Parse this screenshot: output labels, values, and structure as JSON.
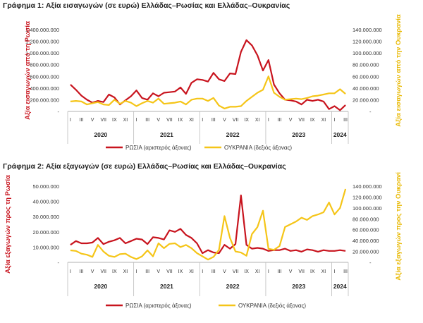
{
  "colors": {
    "russia": "#c8141e",
    "ukraine": "#f5c518",
    "axis": "#999999",
    "year_divider": "#bbbbbb"
  },
  "chart_data": [
    {
      "type": "line",
      "title": "Γράφημα 1: Αξία εισαγωγών (σε ευρώ) Ελλάδας–Ρωσίας και Ελλάδας–Ουκρανίας",
      "ylabel_left": "Αξία εισαγωγών από τη Ρωσία",
      "ylabel_right": "Αξία εισαγωγών από την Ουκρανία",
      "y_left_ticks": [
        "-",
        "200.000.000",
        "400.000.000",
        "600.000.000",
        "800.000.000",
        "1.000.000.000",
        "1.200.000.000",
        "1.400.000.000"
      ],
      "y_right_ticks": [
        "-",
        "20.000.000",
        "40.000.000",
        "60.000.000",
        "80.000.000",
        "100.000.000",
        "120.000.000",
        "140.000.000"
      ],
      "ylim_left": [
        0,
        1400000000
      ],
      "ylim_right": [
        0,
        140000000
      ],
      "month_labels": [
        "I",
        "III",
        "V",
        "VII",
        "IX",
        "XI",
        "I",
        "III",
        "V",
        "VII",
        "IX",
        "XI",
        "I",
        "III",
        "V",
        "VII",
        "IX",
        "XI",
        "I",
        "III",
        "V",
        "VII",
        "IX",
        "XI",
        "I",
        "III"
      ],
      "years": [
        "2020",
        "2021",
        "2022",
        "2023",
        "2024"
      ],
      "x": [
        "2020-01",
        "2020-02",
        "2020-03",
        "2020-04",
        "2020-05",
        "2020-06",
        "2020-07",
        "2020-08",
        "2020-09",
        "2020-10",
        "2020-11",
        "2020-12",
        "2021-01",
        "2021-02",
        "2021-03",
        "2021-04",
        "2021-05",
        "2021-06",
        "2021-07",
        "2021-08",
        "2021-09",
        "2021-10",
        "2021-11",
        "2021-12",
        "2022-01",
        "2022-02",
        "2022-03",
        "2022-04",
        "2022-05",
        "2022-06",
        "2022-07",
        "2022-08",
        "2022-09",
        "2022-10",
        "2022-11",
        "2022-12",
        "2023-01",
        "2023-02",
        "2023-03",
        "2023-04",
        "2023-05",
        "2023-06",
        "2023-07",
        "2023-08",
        "2023-09",
        "2023-10",
        "2023-11",
        "2023-12",
        "2024-01",
        "2024-02",
        "2024-03"
      ],
      "series": [
        {
          "name": "ΡΩΣΙΑ (αριστερός άξονας)",
          "axis": "left",
          "values": [
            460000000,
            370000000,
            270000000,
            200000000,
            150000000,
            180000000,
            160000000,
            290000000,
            240000000,
            120000000,
            190000000,
            260000000,
            360000000,
            230000000,
            200000000,
            310000000,
            260000000,
            320000000,
            330000000,
            340000000,
            410000000,
            300000000,
            490000000,
            550000000,
            540000000,
            510000000,
            660000000,
            550000000,
            520000000,
            650000000,
            640000000,
            1020000000,
            1220000000,
            1130000000,
            960000000,
            700000000,
            880000000,
            460000000,
            310000000,
            200000000,
            190000000,
            170000000,
            120000000,
            200000000,
            180000000,
            200000000,
            170000000,
            40000000,
            90000000,
            20000000,
            110000000
          ]
        },
        {
          "name": "ΟΥΚΡΑΝΙΑ (δεξιός άξονας)",
          "axis": "right",
          "values": [
            17000000,
            18000000,
            17000000,
            12000000,
            14000000,
            16000000,
            12000000,
            11000000,
            20000000,
            13000000,
            18000000,
            15000000,
            9000000,
            14000000,
            18000000,
            15000000,
            22000000,
            13000000,
            14000000,
            15000000,
            17000000,
            12000000,
            20000000,
            22000000,
            22000000,
            18000000,
            23000000,
            10000000,
            5000000,
            8000000,
            8000000,
            9000000,
            18000000,
            25000000,
            32000000,
            37000000,
            60000000,
            32000000,
            25000000,
            20000000,
            21000000,
            22000000,
            21000000,
            23000000,
            26000000,
            27000000,
            29000000,
            31000000,
            31000000,
            38000000,
            30000000
          ]
        }
      ]
    },
    {
      "type": "line",
      "title": "Γράφημα 2: Αξία εξαγωγών (σε ευρώ) Ελλάδας–Ρωσίας και Ελλάδας–Ουκρανίας",
      "ylabel_left": "Αξία εξαγωγών προς τη Ρωσία",
      "ylabel_right": "Αξία εξαγωγών προς την Ουκρανία",
      "y_left_ticks": [
        "-",
        "10.000.000",
        "20.000.000",
        "30.000.000",
        "40.000.000",
        "50.000.000"
      ],
      "y_right_ticks": [
        "-",
        "20.000.000",
        "40.000.000",
        "60.000.000",
        "80.000.000",
        "100.000.000",
        "120.000.000",
        "140.000.000"
      ],
      "ylim_left": [
        0,
        50000000
      ],
      "ylim_right": [
        0,
        140000000
      ],
      "month_labels": [
        "I",
        "III",
        "V",
        "VII",
        "IX",
        "XI",
        "I",
        "III",
        "V",
        "VII",
        "IX",
        "XI",
        "I",
        "III",
        "V",
        "VII",
        "IX",
        "XI",
        "I",
        "III",
        "V",
        "VII",
        "IX",
        "XI",
        "I",
        "III"
      ],
      "years": [
        "2020",
        "2021",
        "2022",
        "2023",
        "2024"
      ],
      "x": [
        "2020-01",
        "2020-02",
        "2020-03",
        "2020-04",
        "2020-05",
        "2020-06",
        "2020-07",
        "2020-08",
        "2020-09",
        "2020-10",
        "2020-11",
        "2020-12",
        "2021-01",
        "2021-02",
        "2021-03",
        "2021-04",
        "2021-05",
        "2021-06",
        "2021-07",
        "2021-08",
        "2021-09",
        "2021-10",
        "2021-11",
        "2021-12",
        "2022-01",
        "2022-02",
        "2022-03",
        "2022-04",
        "2022-05",
        "2022-06",
        "2022-07",
        "2022-08",
        "2022-09",
        "2022-10",
        "2022-11",
        "2022-12",
        "2023-01",
        "2023-02",
        "2023-03",
        "2023-04",
        "2023-05",
        "2023-06",
        "2023-07",
        "2023-08",
        "2023-09",
        "2023-10",
        "2023-11",
        "2023-12",
        "2024-01",
        "2024-02",
        "2024-03"
      ],
      "series": [
        {
          "name": "ΡΩΣΙΑ (αριστερός άξονας)",
          "axis": "left",
          "values": [
            11500000,
            14000000,
            12500000,
            12500000,
            13000000,
            16000000,
            12000000,
            13500000,
            14500000,
            16000000,
            12500000,
            14000000,
            15500000,
            15000000,
            12000000,
            16500000,
            16000000,
            15000000,
            21000000,
            20000000,
            22000000,
            18000000,
            16000000,
            12500000,
            6000000,
            8000000,
            6500000,
            6000000,
            11500000,
            9000000,
            12000000,
            44000000,
            11500000,
            9000000,
            9500000,
            9000000,
            7500000,
            8000000,
            8000000,
            9000000,
            7500000,
            8000000,
            7000000,
            8500000,
            8000000,
            7000000,
            8000000,
            7500000,
            7500000,
            8000000,
            7500000
          ]
        },
        {
          "name": "ΟΥΚΡΑΝΙΑ (δεξιός άξονας)",
          "axis": "right",
          "values": [
            22000000,
            21000000,
            16000000,
            14000000,
            10000000,
            32000000,
            20000000,
            12000000,
            10000000,
            15000000,
            16000000,
            10000000,
            6000000,
            11000000,
            22000000,
            11000000,
            35000000,
            26000000,
            34000000,
            35000000,
            28000000,
            32000000,
            26000000,
            17000000,
            11000000,
            5000000,
            10000000,
            23000000,
            85000000,
            45000000,
            20000000,
            18000000,
            12000000,
            52000000,
            65000000,
            95000000,
            25000000,
            23000000,
            30000000,
            65000000,
            70000000,
            75000000,
            82000000,
            78000000,
            85000000,
            88000000,
            92000000,
            110000000,
            88000000,
            100000000,
            135000000
          ]
        }
      ]
    }
  ]
}
